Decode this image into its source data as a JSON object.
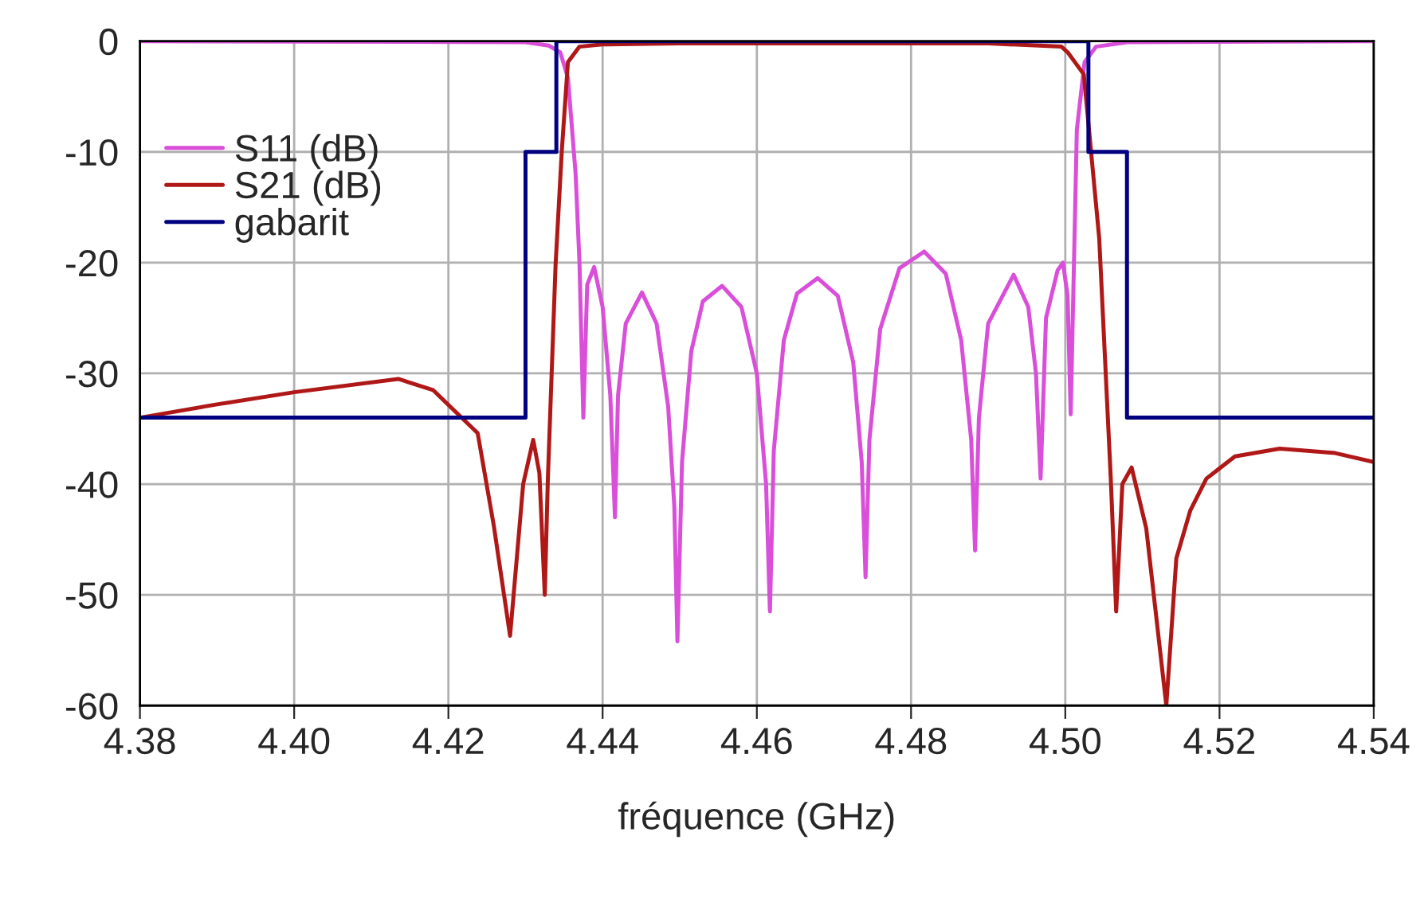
{
  "chart_data": {
    "type": "line",
    "xlabel": "fréquence (GHz)",
    "xlim": [
      4.38,
      4.54
    ],
    "ylim": [
      -60,
      0
    ],
    "xticks": [
      {
        "value": 4.38,
        "label": "4.38"
      },
      {
        "value": 4.4,
        "label": "4.40"
      },
      {
        "value": 4.42,
        "label": "4.42"
      },
      {
        "value": 4.44,
        "label": "4.44"
      },
      {
        "value": 4.46,
        "label": "4.46"
      },
      {
        "value": 4.48,
        "label": "4.48"
      },
      {
        "value": 4.5,
        "label": "4.50"
      },
      {
        "value": 4.52,
        "label": "4.52"
      },
      {
        "value": 4.54,
        "label": "4.54"
      }
    ],
    "yticks": [
      -60,
      -50,
      -40,
      -30,
      -20,
      -10,
      0
    ],
    "grid": true,
    "legend": "top left",
    "marker": "none",
    "line_style": "solid",
    "series": [
      {
        "name": "S11 (dB)",
        "color": "#d94fd9",
        "x": [
          4.38,
          4.43,
          4.433,
          4.4345,
          4.4355,
          4.4365,
          4.437,
          4.4375,
          4.438,
          4.4389,
          4.44,
          4.441,
          4.4416,
          4.442,
          4.443,
          4.4451,
          4.447,
          4.4485,
          4.4493,
          4.4497,
          4.4503,
          4.4515,
          4.453,
          4.4555,
          4.458,
          4.46,
          4.4612,
          4.4617,
          4.4622,
          4.4635,
          4.4652,
          4.4679,
          4.4705,
          4.4725,
          4.4736,
          4.4741,
          4.4746,
          4.476,
          4.4785,
          4.4817,
          4.4845,
          4.4865,
          4.4878,
          4.4883,
          4.4888,
          4.49,
          4.4933,
          4.4952,
          4.4962,
          4.4968,
          4.4975,
          4.499,
          4.4997,
          4.5003,
          4.5007,
          4.5015,
          4.5025,
          4.504,
          4.508,
          4.54
        ],
        "values": [
          0,
          -0.1,
          -0.4,
          -1,
          -3.3,
          -12,
          -20,
          -34,
          -22,
          -20.4,
          -24,
          -32,
          -43,
          -32,
          -25.5,
          -22.7,
          -25.5,
          -33,
          -42,
          -54.2,
          -38,
          -28,
          -23.5,
          -22.1,
          -24,
          -30,
          -40,
          -51.5,
          -37,
          -27,
          -22.8,
          -21.4,
          -23,
          -29,
          -38,
          -48.4,
          -36,
          -26,
          -20.5,
          -19,
          -21,
          -27,
          -36,
          -46,
          -34,
          -25.5,
          -21.1,
          -24,
          -30,
          -39.5,
          -25,
          -20.7,
          -20,
          -23,
          -33.7,
          -8,
          -1.9,
          -0.5,
          -0.1,
          0
        ]
      },
      {
        "name": "S21 (dB)",
        "color": "#b01818",
        "x": [
          4.38,
          4.39,
          4.4,
          4.4135,
          4.418,
          4.4238,
          4.4259,
          4.428,
          4.4297,
          4.431,
          4.4318,
          4.4325,
          4.4329,
          4.4339,
          4.4347,
          4.4355,
          4.437,
          4.44,
          4.45,
          4.49,
          4.4995,
          4.5003,
          4.5024,
          4.5044,
          4.5059,
          4.5066,
          4.5074,
          4.5086,
          4.5105,
          4.5131,
          4.5144,
          4.5162,
          4.5183,
          4.522,
          4.5278,
          4.535,
          4.54
        ],
        "values": [
          -34,
          -32.8,
          -31.7,
          -30.5,
          -31.5,
          -35.4,
          -43.8,
          -53.7,
          -40,
          -36,
          -39,
          -50,
          -39.5,
          -20.2,
          -10,
          -1.9,
          -0.5,
          -0.3,
          -0.2,
          -0.2,
          -0.5,
          -1,
          -3,
          -17.8,
          -39.5,
          -51.5,
          -40,
          -38.5,
          -44,
          -60,
          -46.7,
          -42.4,
          -39.5,
          -37.5,
          -36.8,
          -37.2,
          -38
        ]
      },
      {
        "name": "gabarit",
        "color": "#000080",
        "type": "step",
        "x": [
          4.38,
          4.43,
          4.434,
          4.503,
          4.508,
          4.54
        ],
        "values": [
          -34,
          -10,
          0,
          -10,
          -34,
          -34
        ]
      }
    ]
  }
}
